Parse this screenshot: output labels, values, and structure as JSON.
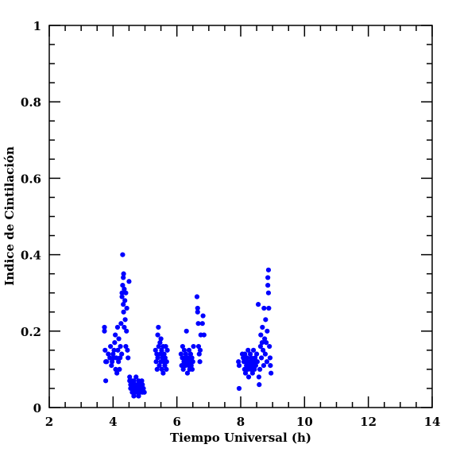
{
  "chart_data": {
    "type": "scatter",
    "title": "",
    "xlabel": "Tiempo Universal (h)",
    "ylabel": "Indice de Cintilación",
    "xlim": [
      2,
      14
    ],
    "ylim": [
      0,
      1
    ],
    "xticks": [
      2,
      4,
      6,
      8,
      10,
      12,
      14
    ],
    "xtick_labels": [
      "2",
      "4",
      "6",
      "8",
      "10",
      "12",
      "14"
    ],
    "yticks": [
      0,
      0.2,
      0.4,
      0.6,
      0.8,
      1
    ],
    "ytick_labels": [
      "0",
      "0.2",
      "0.4",
      "0.6",
      "0.8",
      "1"
    ],
    "grid": false,
    "marker_color": "#0000ff",
    "points": [
      [
        3.73,
        0.21
      ],
      [
        3.73,
        0.2
      ],
      [
        3.75,
        0.15
      ],
      [
        3.77,
        0.12
      ],
      [
        3.77,
        0.07
      ],
      [
        3.8,
        0.12
      ],
      [
        3.85,
        0.14
      ],
      [
        3.9,
        0.13
      ],
      [
        3.92,
        0.16
      ],
      [
        3.95,
        0.11
      ],
      [
        3.97,
        0.12
      ],
      [
        4.0,
        0.14
      ],
      [
        4.02,
        0.13
      ],
      [
        4.03,
        0.15
      ],
      [
        4.05,
        0.17
      ],
      [
        4.07,
        0.19
      ],
      [
        4.08,
        0.1
      ],
      [
        4.1,
        0.13
      ],
      [
        4.12,
        0.09
      ],
      [
        4.14,
        0.21
      ],
      [
        4.15,
        0.15
      ],
      [
        4.17,
        0.12
      ],
      [
        4.18,
        0.18
      ],
      [
        4.2,
        0.1
      ],
      [
        4.22,
        0.13
      ],
      [
        4.23,
        0.16
      ],
      [
        4.25,
        0.22
      ],
      [
        4.27,
        0.14
      ],
      [
        4.28,
        0.3
      ],
      [
        4.28,
        0.29
      ],
      [
        4.3,
        0.4
      ],
      [
        4.3,
        0.32
      ],
      [
        4.32,
        0.34
      ],
      [
        4.32,
        0.27
      ],
      [
        4.33,
        0.35
      ],
      [
        4.33,
        0.25
      ],
      [
        4.35,
        0.31
      ],
      [
        4.35,
        0.21
      ],
      [
        4.37,
        0.28
      ],
      [
        4.38,
        0.23
      ],
      [
        4.4,
        0.16
      ],
      [
        4.4,
        0.3
      ],
      [
        4.42,
        0.2
      ],
      [
        4.43,
        0.26
      ],
      [
        4.45,
        0.15
      ],
      [
        4.47,
        0.13
      ],
      [
        4.5,
        0.33
      ],
      [
        4.52,
        0.08
      ],
      [
        4.52,
        0.07
      ],
      [
        4.55,
        0.06
      ],
      [
        4.55,
        0.05
      ],
      [
        4.58,
        0.07
      ],
      [
        4.6,
        0.04
      ],
      [
        4.6,
        0.06
      ],
      [
        4.62,
        0.05
      ],
      [
        4.65,
        0.03
      ],
      [
        4.65,
        0.07
      ],
      [
        4.68,
        0.05
      ],
      [
        4.7,
        0.04
      ],
      [
        4.7,
        0.06
      ],
      [
        4.72,
        0.08
      ],
      [
        4.75,
        0.05
      ],
      [
        4.75,
        0.04
      ],
      [
        4.78,
        0.06
      ],
      [
        4.8,
        0.03
      ],
      [
        4.8,
        0.07
      ],
      [
        4.83,
        0.05
      ],
      [
        4.85,
        0.04
      ],
      [
        4.85,
        0.06
      ],
      [
        4.88,
        0.05
      ],
      [
        4.9,
        0.07
      ],
      [
        4.92,
        0.04
      ],
      [
        4.92,
        0.06
      ],
      [
        4.95,
        0.05
      ],
      [
        4.98,
        0.04
      ],
      [
        5.33,
        0.15
      ],
      [
        5.35,
        0.12
      ],
      [
        5.37,
        0.14
      ],
      [
        5.38,
        0.1
      ],
      [
        5.4,
        0.19
      ],
      [
        5.4,
        0.13
      ],
      [
        5.42,
        0.21
      ],
      [
        5.43,
        0.16
      ],
      [
        5.45,
        0.11
      ],
      [
        5.47,
        0.17
      ],
      [
        5.48,
        0.14
      ],
      [
        5.5,
        0.18
      ],
      [
        5.5,
        0.12
      ],
      [
        5.52,
        0.15
      ],
      [
        5.53,
        0.1
      ],
      [
        5.55,
        0.13
      ],
      [
        5.57,
        0.16
      ],
      [
        5.57,
        0.09
      ],
      [
        5.58,
        0.12
      ],
      [
        5.6,
        0.14
      ],
      [
        5.62,
        0.11
      ],
      [
        5.63,
        0.13
      ],
      [
        5.65,
        0.16
      ],
      [
        5.67,
        0.1
      ],
      [
        5.68,
        0.12
      ],
      [
        5.7,
        0.15
      ],
      [
        6.13,
        0.14
      ],
      [
        6.15,
        0.11
      ],
      [
        6.17,
        0.13
      ],
      [
        6.18,
        0.16
      ],
      [
        6.2,
        0.1
      ],
      [
        6.22,
        0.12
      ],
      [
        6.23,
        0.15
      ],
      [
        6.25,
        0.13
      ],
      [
        6.27,
        0.11
      ],
      [
        6.28,
        0.14
      ],
      [
        6.3,
        0.2
      ],
      [
        6.32,
        0.12
      ],
      [
        6.33,
        0.09
      ],
      [
        6.35,
        0.13
      ],
      [
        6.37,
        0.11
      ],
      [
        6.38,
        0.15
      ],
      [
        6.4,
        0.1
      ],
      [
        6.42,
        0.12
      ],
      [
        6.43,
        0.14
      ],
      [
        6.45,
        0.11
      ],
      [
        6.47,
        0.13
      ],
      [
        6.48,
        0.1
      ],
      [
        6.5,
        0.12
      ],
      [
        6.52,
        0.16
      ],
      [
        6.63,
        0.29
      ],
      [
        6.65,
        0.25
      ],
      [
        6.65,
        0.26
      ],
      [
        6.67,
        0.22
      ],
      [
        6.68,
        0.16
      ],
      [
        6.7,
        0.14
      ],
      [
        6.72,
        0.12
      ],
      [
        6.73,
        0.15
      ],
      [
        6.75,
        0.19
      ],
      [
        6.8,
        0.22
      ],
      [
        6.82,
        0.24
      ],
      [
        6.85,
        0.19
      ],
      [
        7.95,
        0.05
      ],
      [
        7.93,
        0.12
      ],
      [
        7.95,
        0.11
      ],
      [
        8.05,
        0.14
      ],
      [
        8.08,
        0.13
      ],
      [
        8.1,
        0.12
      ],
      [
        8.12,
        0.1
      ],
      [
        8.13,
        0.14
      ],
      [
        8.15,
        0.09
      ],
      [
        8.17,
        0.12
      ],
      [
        8.18,
        0.11
      ],
      [
        8.2,
        0.13
      ],
      [
        8.22,
        0.1
      ],
      [
        8.23,
        0.15
      ],
      [
        8.25,
        0.08
      ],
      [
        8.27,
        0.12
      ],
      [
        8.28,
        0.11
      ],
      [
        8.3,
        0.14
      ],
      [
        8.32,
        0.1
      ],
      [
        8.33,
        0.13
      ],
      [
        8.35,
        0.12
      ],
      [
        8.37,
        0.09
      ],
      [
        8.38,
        0.11
      ],
      [
        8.4,
        0.15
      ],
      [
        8.42,
        0.12
      ],
      [
        8.43,
        0.1
      ],
      [
        8.45,
        0.13
      ],
      [
        8.47,
        0.11
      ],
      [
        8.5,
        0.14
      ],
      [
        8.52,
        0.12
      ],
      [
        8.55,
        0.27
      ],
      [
        8.57,
        0.08
      ],
      [
        8.58,
        0.06
      ],
      [
        8.6,
        0.1
      ],
      [
        8.62,
        0.16
      ],
      [
        8.63,
        0.19
      ],
      [
        8.65,
        0.13
      ],
      [
        8.67,
        0.17
      ],
      [
        8.68,
        0.21
      ],
      [
        8.7,
        0.15
      ],
      [
        8.72,
        0.11
      ],
      [
        8.73,
        0.26
      ],
      [
        8.75,
        0.18
      ],
      [
        8.77,
        0.14
      ],
      [
        8.78,
        0.23
      ],
      [
        8.8,
        0.17
      ],
      [
        8.82,
        0.12
      ],
      [
        8.83,
        0.2
      ],
      [
        8.85,
        0.32
      ],
      [
        8.85,
        0.34
      ],
      [
        8.87,
        0.36
      ],
      [
        8.87,
        0.3
      ],
      [
        8.88,
        0.26
      ],
      [
        8.9,
        0.16
      ],
      [
        8.92,
        0.13
      ],
      [
        8.93,
        0.11
      ],
      [
        8.95,
        0.09
      ]
    ]
  }
}
